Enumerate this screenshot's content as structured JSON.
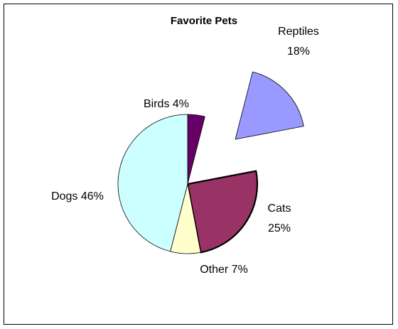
{
  "chart_data": {
    "type": "pie",
    "title": "Favorite Pets",
    "slices": [
      {
        "name": "Birds",
        "value": 4,
        "label": "Birds 4%",
        "color": "#660066",
        "exploded": false,
        "highlighted": false
      },
      {
        "name": "Reptiles",
        "value": 18,
        "label_lines": [
          "Reptiles",
          "18%"
        ],
        "color": "#9999ff",
        "exploded": true,
        "highlighted": false
      },
      {
        "name": "Cats",
        "value": 25,
        "label_lines": [
          "Cats",
          "25%"
        ],
        "color": "#993366",
        "exploded": false,
        "highlighted": true
      },
      {
        "name": "Other",
        "value": 7,
        "label": "Other 7%",
        "color": "#ffffcc",
        "exploded": false,
        "highlighted": false
      },
      {
        "name": "Dogs",
        "value": 46,
        "label": "Dogs 46%",
        "color": "#ccffff",
        "exploded": false,
        "highlighted": false
      }
    ]
  }
}
